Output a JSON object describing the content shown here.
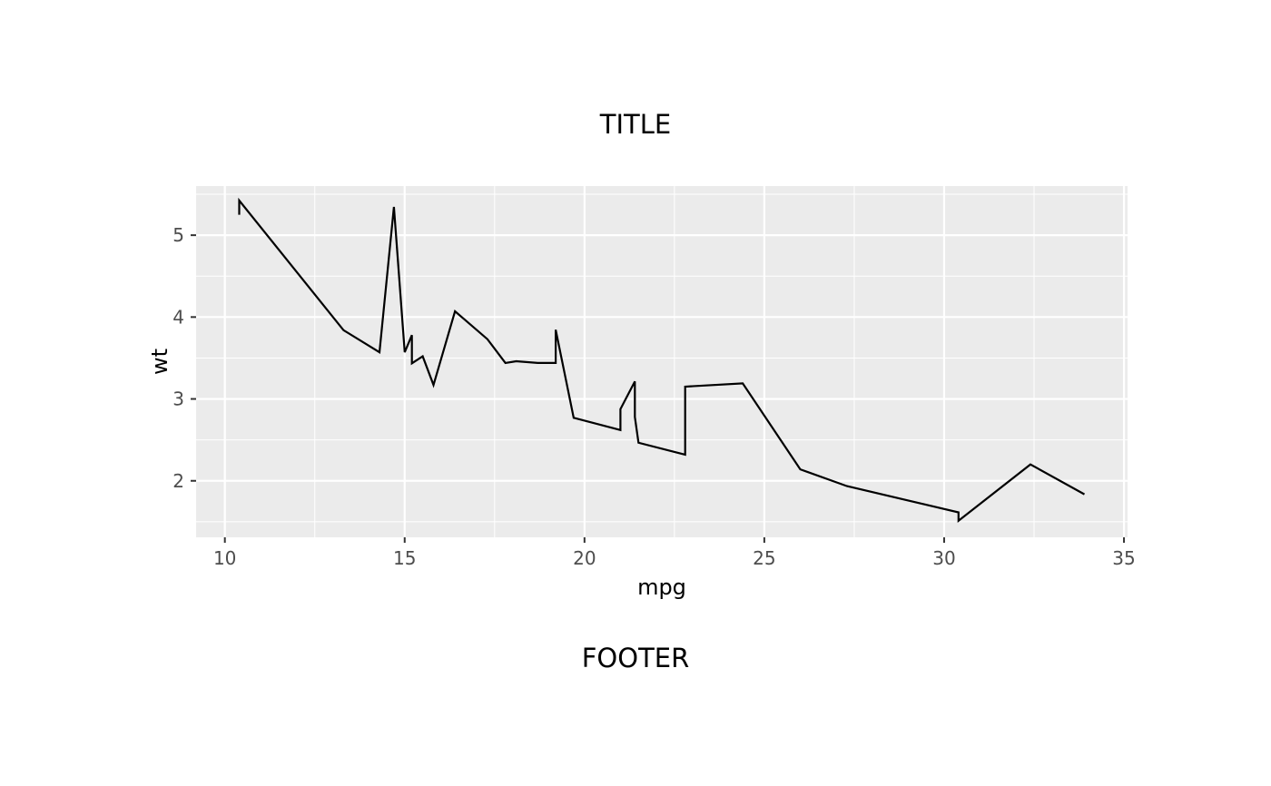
{
  "title": "TITLE",
  "footer": "FOOTER",
  "chart_data": {
    "type": "line",
    "xlabel": "mpg",
    "ylabel": "wt",
    "xlim": [
      9.2,
      35.1
    ],
    "ylim": [
      1.31,
      5.6
    ],
    "x_ticks": [
      10,
      15,
      20,
      25,
      30,
      35
    ],
    "y_ticks": [
      2,
      3,
      4,
      5
    ],
    "grid": true,
    "background": "#EBEBEB",
    "line_color": "#000000",
    "series": [
      {
        "x": [
          10.4,
          10.4,
          13.3,
          14.3,
          14.7,
          15.0,
          15.2,
          15.2,
          15.5,
          15.8,
          16.4,
          17.3,
          17.8,
          18.1,
          18.7,
          19.2,
          19.2,
          19.7,
          21.0,
          21.0,
          21.4,
          21.4,
          21.5,
          22.8,
          22.8,
          24.4,
          26.0,
          27.3,
          30.4,
          30.4,
          32.4,
          33.9
        ],
        "y": [
          5.25,
          5.424,
          3.84,
          3.57,
          5.345,
          3.57,
          3.78,
          3.435,
          3.52,
          3.17,
          4.07,
          3.73,
          3.44,
          3.46,
          3.44,
          3.44,
          3.845,
          2.77,
          2.62,
          2.875,
          3.215,
          2.78,
          2.465,
          2.32,
          3.15,
          3.19,
          2.14,
          1.935,
          1.615,
          1.513,
          2.2,
          1.835
        ]
      }
    ]
  }
}
